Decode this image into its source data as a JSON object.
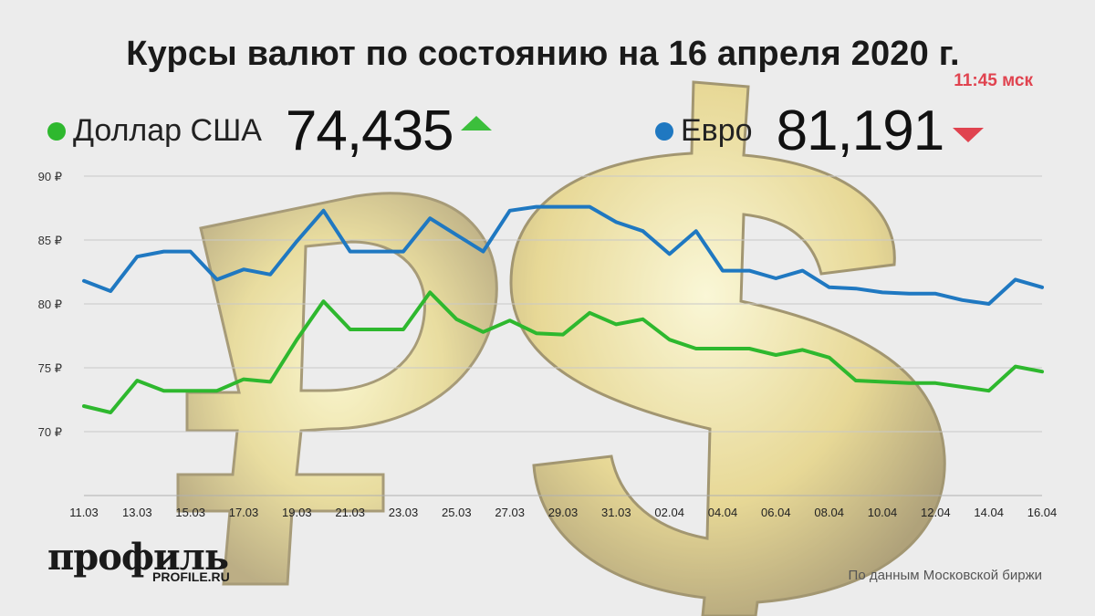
{
  "header": {
    "title": "Курсы валют по состоянию на 16 апреля 2020 г.",
    "time": "11:45 мск"
  },
  "legend": {
    "usd": {
      "label": "Доллар США",
      "value": "74,435",
      "trend": "up",
      "color": "#2eb82e"
    },
    "eur": {
      "label": "Евро",
      "value": "81,191",
      "trend": "down",
      "color": "#1f78c1"
    }
  },
  "chart_data": {
    "type": "line",
    "x": [
      "11.03",
      "12.03",
      "13.03",
      "14.03",
      "15.03",
      "16.03",
      "17.03",
      "18.03",
      "19.03",
      "20.03",
      "21.03",
      "22.03",
      "23.03",
      "24.03",
      "25.03",
      "26.03",
      "27.03",
      "28.03",
      "29.03",
      "30.03",
      "31.03",
      "01.04",
      "02.04",
      "03.04",
      "04.04",
      "05.04",
      "06.04",
      "07.04",
      "08.04",
      "09.04",
      "10.04",
      "11.04",
      "12.04",
      "13.04",
      "14.04",
      "15.04",
      "16.04"
    ],
    "x_tick_labels": [
      "11.03",
      "13.03",
      "15.03",
      "17.03",
      "19.03",
      "21.03",
      "23.03",
      "25.03",
      "27.03",
      "29.03",
      "31.03",
      "02.04",
      "04.04",
      "06.04",
      "08.04",
      "10.04",
      "12.04",
      "14.04",
      "16.04"
    ],
    "y_tick_labels": [
      "70 ₽",
      "75 ₽",
      "80 ₽",
      "85 ₽",
      "90 ₽"
    ],
    "y_ticks": [
      70,
      75,
      80,
      85,
      90
    ],
    "ylim": [
      65,
      90
    ],
    "grid": true,
    "series": [
      {
        "name": "Доллар США",
        "color": "#2eb82e",
        "values": [
          72.0,
          71.5,
          74.0,
          73.2,
          73.2,
          73.2,
          74.1,
          73.9,
          77.2,
          80.2,
          78.0,
          78.0,
          78.0,
          80.9,
          78.8,
          77.8,
          78.7,
          77.7,
          77.6,
          79.3,
          78.4,
          78.8,
          77.2,
          76.5,
          76.5,
          76.5,
          76.0,
          76.4,
          75.8,
          74.0,
          73.9,
          73.8,
          73.8,
          73.5,
          73.2,
          75.1,
          74.7
        ]
      },
      {
        "name": "Евро",
        "color": "#1f78c1",
        "values": [
          81.8,
          81.0,
          83.7,
          84.1,
          84.1,
          81.9,
          82.7,
          82.3,
          84.9,
          87.3,
          84.1,
          84.1,
          84.1,
          86.7,
          85.4,
          84.1,
          87.3,
          87.6,
          87.6,
          87.6,
          86.4,
          85.7,
          83.9,
          85.7,
          82.6,
          82.6,
          82.0,
          82.6,
          81.3,
          81.2,
          80.9,
          80.8,
          80.8,
          80.3,
          80.0,
          81.9,
          81.3
        ]
      }
    ]
  },
  "footer": {
    "logo": "профиль",
    "logo_sub": "PROFILE.RU",
    "source": "По данным Московской биржи"
  }
}
